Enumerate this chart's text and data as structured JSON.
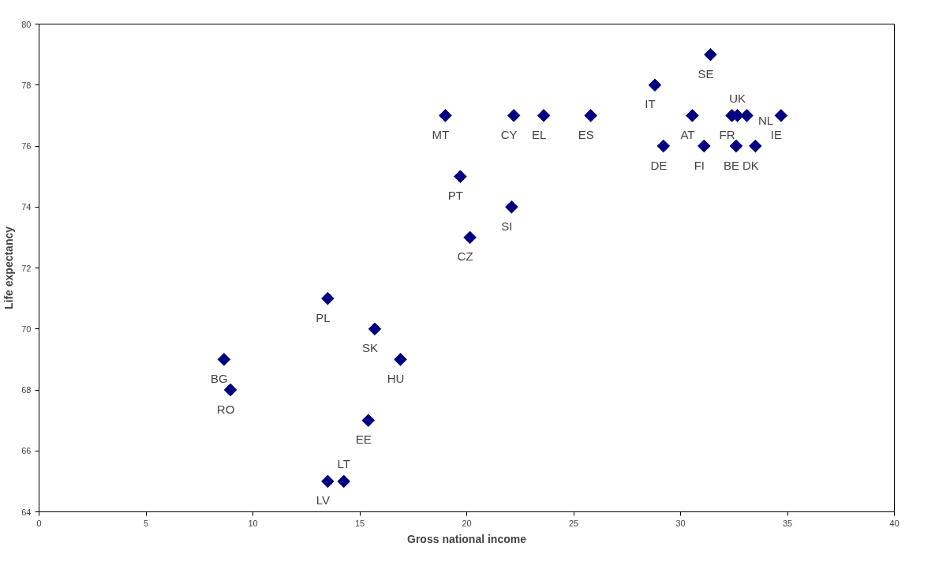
{
  "chart_data": {
    "type": "scatter",
    "xlabel": "Gross national income",
    "ylabel": "Life expectancy",
    "x": [
      19.0,
      22.2,
      23.6,
      25.8,
      28.8,
      31.4,
      30.55,
      32.4,
      32.66,
      33.1,
      34.7,
      29.2,
      31.1,
      32.6,
      33.5,
      19.7,
      22.1,
      20.15,
      13.5,
      15.7,
      16.9,
      8.65,
      8.95,
      15.4,
      13.5,
      14.25
    ],
    "series": [
      {
        "color": "#000080",
        "values": [
          77,
          77,
          77,
          77,
          78,
          79,
          77,
          77,
          77,
          77,
          77,
          76,
          76,
          76,
          76,
          75,
          74,
          73,
          71,
          70,
          69,
          69,
          68,
          67,
          65,
          65
        ]
      }
    ],
    "marker": "diamond",
    "grid": false,
    "xlim": [
      0,
      40
    ],
    "xticks": [
      0,
      5,
      10,
      15,
      20,
      25,
      30,
      35,
      40
    ],
    "ylim": [
      64,
      80
    ],
    "yticks": [
      64,
      66,
      68,
      70,
      72,
      74,
      76,
      78,
      80
    ],
    "annotations": [
      {
        "text": "MT",
        "x": 19.0,
        "y": 77
      },
      {
        "text": "CY",
        "x": 22.2,
        "y": 77
      },
      {
        "text": "EL",
        "x": 23.6,
        "y": 77
      },
      {
        "text": "ES",
        "x": 25.8,
        "y": 77
      },
      {
        "text": "IT",
        "x": 28.8,
        "y": 78
      },
      {
        "text": "SE",
        "x": 31.4,
        "y": 79
      },
      {
        "text": "AT",
        "x": 30.55,
        "y": 77
      },
      {
        "text": "FR",
        "x": 32.4,
        "y": 77
      },
      {
        "text": "UK",
        "x": 32.66,
        "y": 77
      },
      {
        "text": "NL",
        "x": 33.1,
        "y": 77
      },
      {
        "text": "IE",
        "x": 34.7,
        "y": 77
      },
      {
        "text": "DE",
        "x": 29.2,
        "y": 76
      },
      {
        "text": "FI",
        "x": 31.1,
        "y": 76
      },
      {
        "text": "BE",
        "x": 32.6,
        "y": 76
      },
      {
        "text": "DK",
        "x": 33.5,
        "y": 76
      },
      {
        "text": "PT",
        "x": 19.7,
        "y": 75
      },
      {
        "text": "SI",
        "x": 22.1,
        "y": 74
      },
      {
        "text": "CZ",
        "x": 20.15,
        "y": 73
      },
      {
        "text": "PL",
        "x": 13.5,
        "y": 71
      },
      {
        "text": "SK",
        "x": 15.7,
        "y": 70
      },
      {
        "text": "HU",
        "x": 16.9,
        "y": 69
      },
      {
        "text": "BG",
        "x": 8.65,
        "y": 69
      },
      {
        "text": "RO",
        "x": 8.95,
        "y": 68
      },
      {
        "text": "EE",
        "x": 15.4,
        "y": 67
      },
      {
        "text": "LV",
        "x": 13.5,
        "y": 65
      },
      {
        "text": "LT",
        "x": 14.25,
        "y": 65
      }
    ]
  }
}
